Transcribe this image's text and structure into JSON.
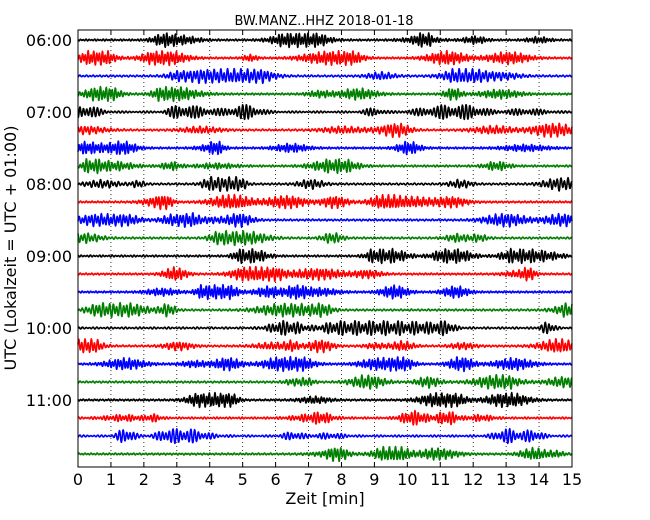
{
  "chart_data": {
    "type": "line",
    "title": "BW.MANZ..HHZ 2018-01-18",
    "xlabel": "Zeit  [min]",
    "ylabel": "UTC (Lokalzeit = UTC + 01:00)",
    "xlim": [
      0,
      15
    ],
    "x_ticks": [
      "0",
      "1",
      "2",
      "3",
      "4",
      "5",
      "6",
      "7",
      "8",
      "9",
      "10",
      "11",
      "12",
      "13",
      "14",
      "15"
    ],
    "y_ticks": [
      "06:00",
      "07:00",
      "08:00",
      "09:00",
      "10:00",
      "11:00"
    ],
    "trace_count": 24,
    "trace_interval_min": 15,
    "first_trace_start": "06:00",
    "color_cycle": [
      "#000000",
      "#ff0000",
      "#0000ff",
      "#007f00"
    ],
    "grid": {
      "x": "dotted",
      "y": "off"
    }
  }
}
